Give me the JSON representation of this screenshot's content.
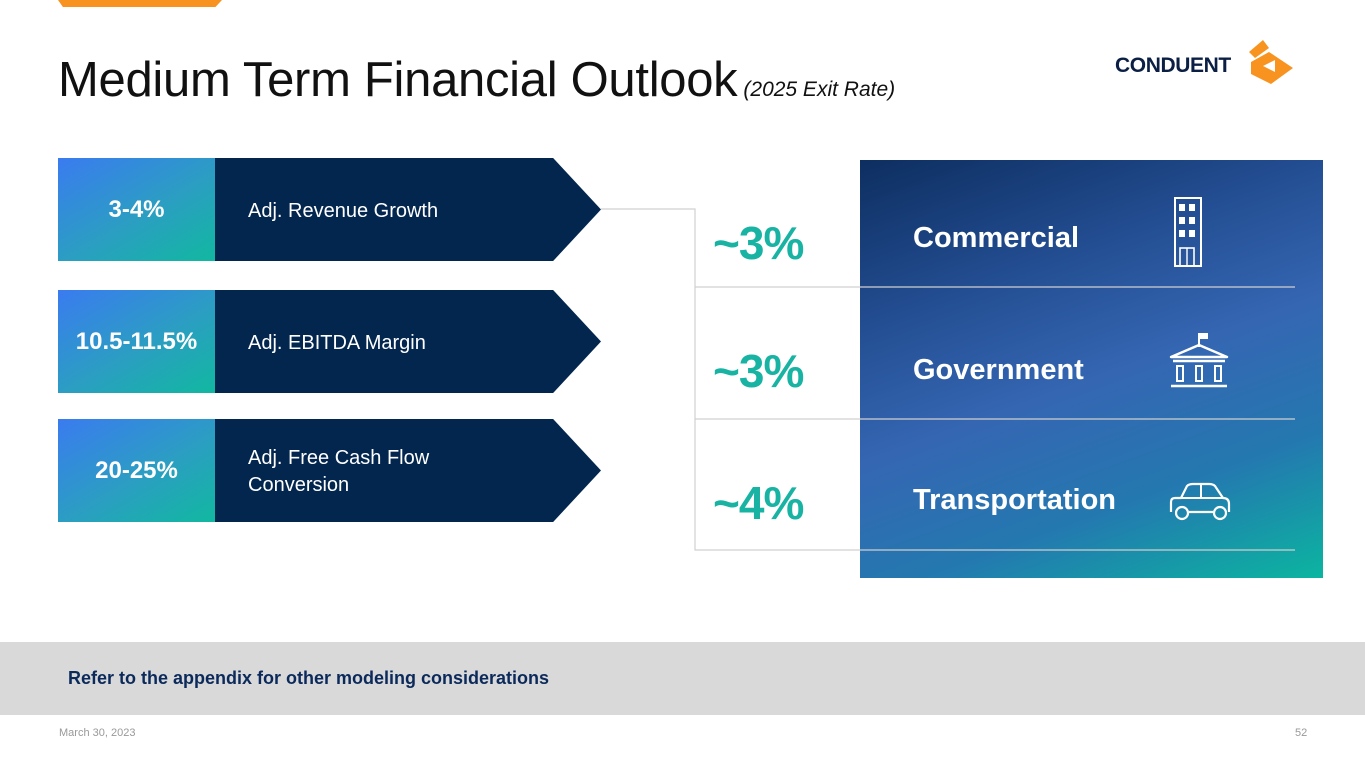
{
  "header": {
    "title": "Medium Term Financial Outlook",
    "subtitle": "(2025 Exit Rate)",
    "logo_text": "CONDUENT"
  },
  "metrics": [
    {
      "value": "3-4%",
      "label": "Adj. Revenue Growth"
    },
    {
      "value": "10.5-11.5%",
      "label": "Adj. EBITDA Margin"
    },
    {
      "value": "20-25%",
      "label": "Adj. Free Cash Flow\nConversion"
    }
  ],
  "segments": [
    {
      "pct": "~3%",
      "name": "Commercial",
      "icon": "building-icon"
    },
    {
      "pct": "~3%",
      "name": "Government",
      "icon": "government-building-icon"
    },
    {
      "pct": "~4%",
      "name": "Transportation",
      "icon": "car-icon"
    }
  ],
  "footer": {
    "note": "Refer to the appendix for other modeling considerations",
    "date": "March 30, 2023",
    "page_number": "52"
  },
  "colors": {
    "accent_orange": "#f7931e",
    "navy": "#03264f",
    "teal": "#19b3a3"
  }
}
